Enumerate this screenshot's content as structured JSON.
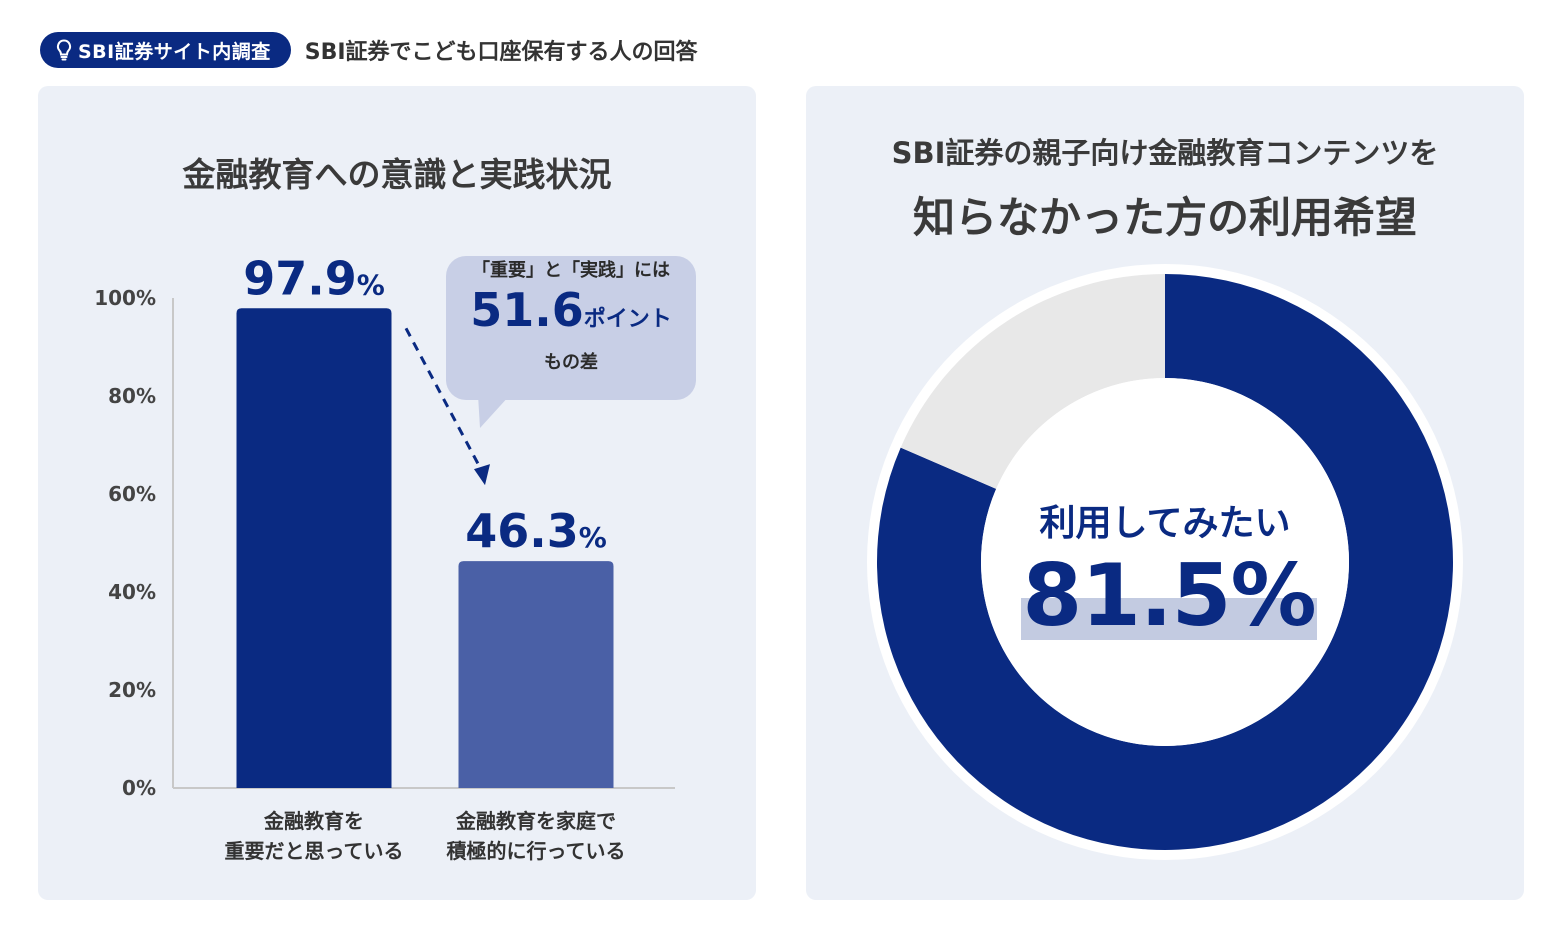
{
  "header": {
    "badge_label": "SBI証券サイト内調査",
    "badge_icon": "lightbulb-icon",
    "subtitle": "SBI証券でこども口座保有する人の回答"
  },
  "left_panel": {
    "title": "金融教育への意識と実践状況",
    "callout": {
      "line1": "「重要」と「実践」には",
      "value": "51.6",
      "unit": "ポイント",
      "line3": "もの差"
    }
  },
  "right_panel": {
    "title_line1": "SBI証券の親子向け金融教育コンテンツを",
    "title_line2": "知らなかった方の利用希望",
    "center_label": "利用してみたい",
    "center_value": "81.5%"
  },
  "colors": {
    "accent": "#0a2a82",
    "bar_secondary": "#4a60a6",
    "donut_rest": "#e8e8e8",
    "callout_bg": "#c8cfe6",
    "panel_bg": "#ecf0f7"
  },
  "chart_data": [
    {
      "type": "bar",
      "title": "金融教育への意識と実践状況",
      "categories": [
        [
          "金融教育を",
          "重要だと思っている"
        ],
        [
          "金融教育を家庭で",
          "積極的に行っている"
        ]
      ],
      "values": [
        97.9,
        46.3
      ],
      "value_labels": [
        "97.9",
        "46.3"
      ],
      "value_suffix": "%",
      "ylim": [
        0,
        100
      ],
      "yticks": [
        0,
        20,
        40,
        60,
        80,
        100
      ],
      "ytick_labels": [
        "0%",
        "20%",
        "40%",
        "60%",
        "80%",
        "100%"
      ],
      "difference": 51.6
    },
    {
      "type": "pie",
      "title": "知らなかった方の利用希望",
      "slices": [
        {
          "label": "利用してみたい",
          "value": 81.5
        },
        {
          "label": "",
          "value": 18.5
        }
      ]
    }
  ]
}
